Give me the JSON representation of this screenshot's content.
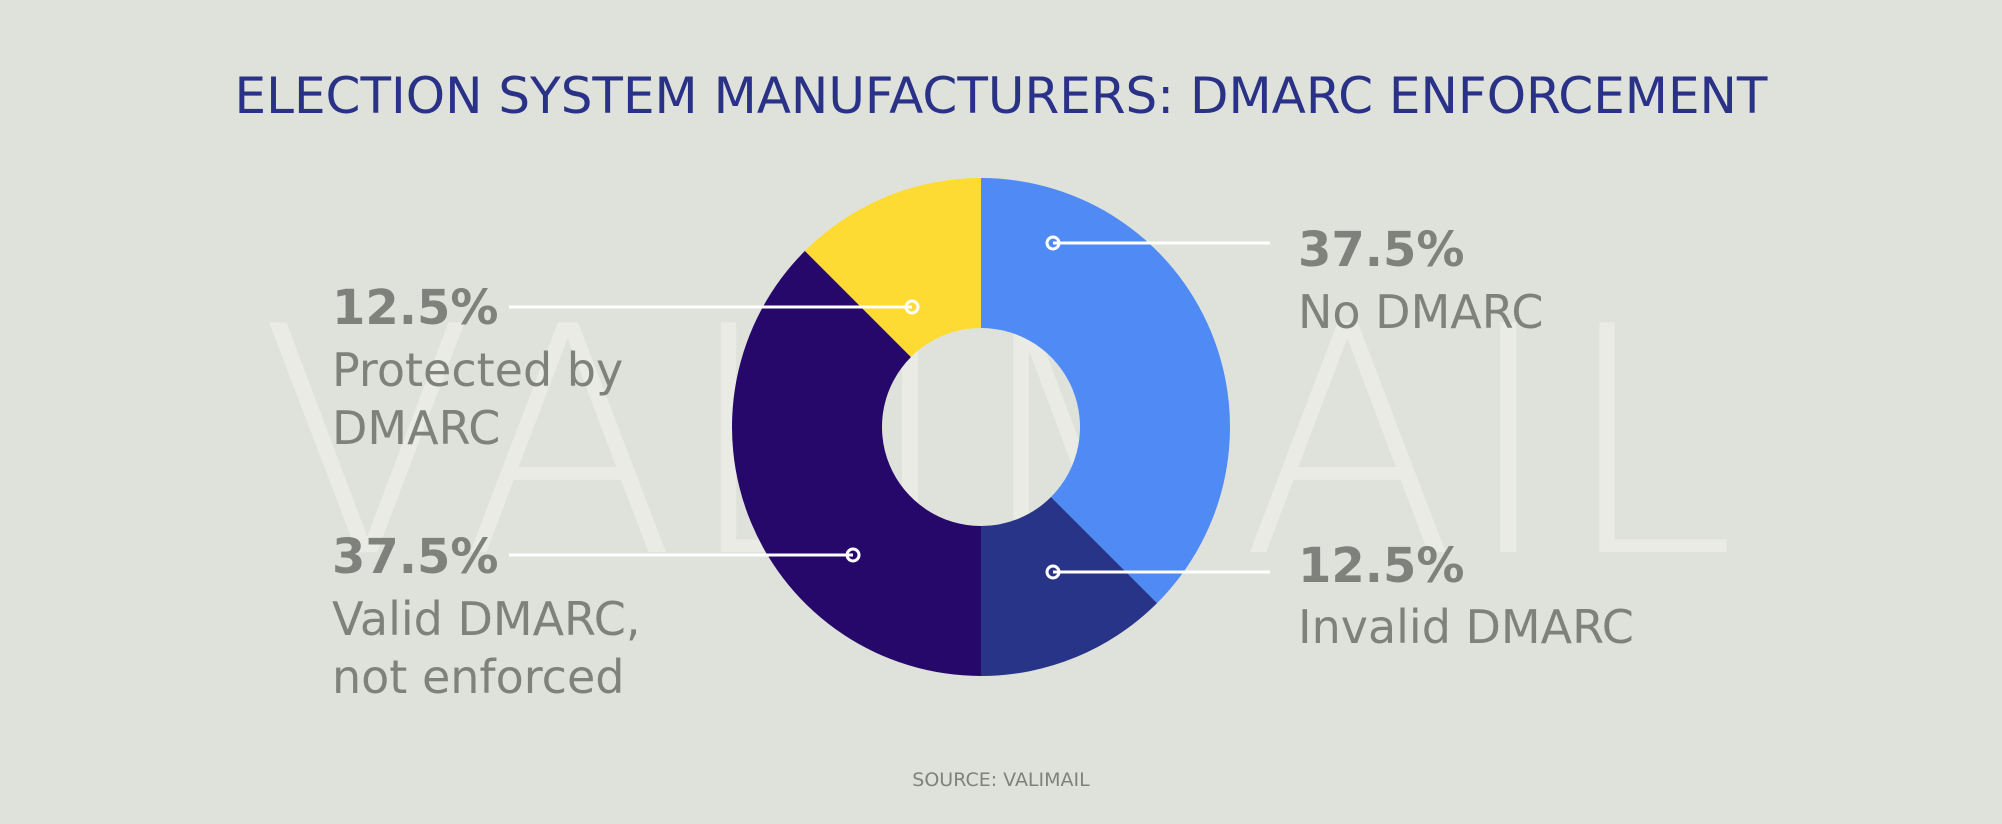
{
  "colors": {
    "background": "#dfe2da",
    "title": "#2a3287",
    "label": "#7f827c",
    "leader": "#ffffff",
    "watermark": "#e9ebe4"
  },
  "watermark": "VALIMAIL",
  "chart_data": {
    "type": "pie",
    "variant": "donut",
    "title": "ELECTION SYSTEM MANUFACTURERS: DMARC ENFORCEMENT",
    "source": "SOURCE: VALIMAIL",
    "slices": [
      {
        "label": "No DMARC",
        "value": 37.5,
        "display": "37.5%",
        "color": "#4f8af5",
        "label_lines": [
          "No DMARC"
        ]
      },
      {
        "label": "Invalid DMARC",
        "value": 12.5,
        "display": "12.5%",
        "color": "#283487",
        "label_lines": [
          "Invalid DMARC"
        ]
      },
      {
        "label": "Valid DMARC, not enforced",
        "value": 37.5,
        "display": "37.5%",
        "color": "#26086a",
        "label_lines": [
          "Valid DMARC,",
          "not enforced"
        ]
      },
      {
        "label": "Protected by DMARC",
        "value": 12.5,
        "display": "12.5%",
        "color": "#fedb32",
        "label_lines": [
          "Protected by",
          "DMARC"
        ]
      }
    ]
  }
}
